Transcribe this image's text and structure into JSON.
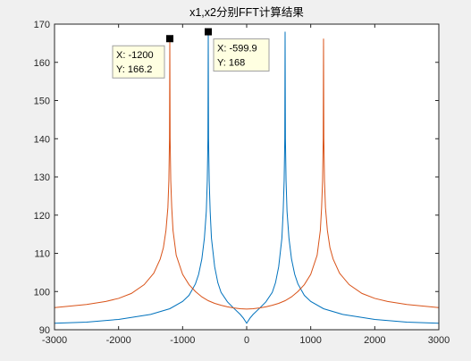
{
  "chart_data": {
    "type": "line",
    "title": "x1,x2分别FFT计算结果",
    "xlabel": "",
    "ylabel": "",
    "xlim": [
      -3000,
      3000
    ],
    "ylim": [
      90,
      170
    ],
    "xticks": [
      -3000,
      -2000,
      -1000,
      0,
      1000,
      2000,
      3000
    ],
    "yticks": [
      90,
      100,
      110,
      120,
      130,
      140,
      150,
      160,
      170
    ],
    "grid": false,
    "legend": "none",
    "series": [
      {
        "color": "#0072bd",
        "x": [
          -3000,
          -2500,
          -2000,
          -1500,
          -1200,
          -1000,
          -900,
          -800,
          -750,
          -700,
          -660,
          -630,
          -615,
          -605,
          -599.9,
          -595,
          -585,
          -570,
          -550,
          -500,
          -450,
          -400,
          -300,
          -200,
          -100,
          -50,
          0,
          50,
          100,
          200,
          300,
          400,
          450,
          500,
          550,
          570,
          585,
          595,
          599.9,
          605,
          615,
          630,
          660,
          700,
          750,
          800,
          900,
          1000,
          1200,
          1500,
          2000,
          2500,
          3000
        ],
        "y": [
          91.7,
          92.0,
          92.7,
          94.0,
          95.5,
          97.4,
          99.0,
          102.0,
          104.5,
          108.5,
          114.0,
          121.0,
          129.0,
          140.0,
          168,
          140.0,
          129.0,
          121.0,
          114.0,
          106.5,
          102.3,
          99.8,
          97.3,
          95.6,
          94.0,
          93.0,
          91.7,
          93.0,
          94.0,
          95.6,
          97.3,
          99.8,
          102.3,
          106.5,
          114.0,
          121.0,
          129.0,
          140.0,
          168,
          140.0,
          129.0,
          121.0,
          114.0,
          108.5,
          104.5,
          102.0,
          99.0,
          97.4,
          95.5,
          94.0,
          92.7,
          92.0,
          91.7
        ]
      },
      {
        "color": "#d95319",
        "x": [
          -3000,
          -2500,
          -2200,
          -2000,
          -1800,
          -1600,
          -1450,
          -1350,
          -1300,
          -1260,
          -1230,
          -1215,
          -1205,
          -1200,
          -1195,
          -1185,
          -1170,
          -1150,
          -1100,
          -1000,
          -900,
          -800,
          -700,
          -600,
          -500,
          -400,
          -300,
          -200,
          -100,
          0,
          100,
          200,
          300,
          400,
          500,
          600,
          700,
          800,
          900,
          1000,
          1100,
          1150,
          1170,
          1185,
          1195,
          1200,
          1205,
          1215,
          1230,
          1260,
          1300,
          1350,
          1450,
          1600,
          1800,
          2000,
          2200,
          2500,
          3000
        ],
        "y": [
          95.8,
          96.6,
          97.4,
          98.2,
          99.5,
          101.8,
          104.8,
          108.5,
          111.5,
          116.0,
          122.0,
          129.0,
          140.0,
          166.2,
          140.0,
          129.0,
          122.0,
          116.0,
          109.5,
          104.5,
          101.8,
          100.0,
          98.6,
          97.6,
          96.9,
          96.4,
          96.0,
          95.7,
          95.5,
          95.4,
          95.5,
          95.7,
          96.0,
          96.4,
          96.9,
          97.6,
          98.6,
          100.0,
          101.8,
          104.5,
          109.5,
          116.0,
          122.0,
          129.0,
          140.0,
          166.2,
          140.0,
          129.0,
          122.0,
          116.0,
          111.5,
          108.5,
          104.8,
          101.8,
          99.5,
          98.2,
          97.4,
          96.6,
          95.8
        ]
      }
    ],
    "datatips": [
      {
        "x": -1200,
        "y": 166.2,
        "xtext": "X: -1200",
        "ytext": "Y: 166.2",
        "placement": "below-left"
      },
      {
        "x": -599.9,
        "y": 168,
        "xtext": "X: -599.9",
        "ytext": "Y: 168",
        "placement": "below-right"
      }
    ]
  }
}
